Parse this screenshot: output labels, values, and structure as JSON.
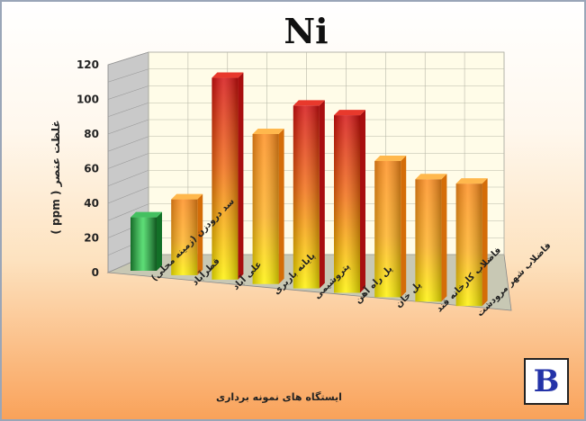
{
  "chart_data": {
    "type": "bar",
    "title": "Ni",
    "ylabel": "غلظت عنصر ( ppm )",
    "xlabel": "ایستگاه های نمونه برداری",
    "ylim": [
      0,
      120
    ],
    "yticks": [
      0,
      20,
      40,
      60,
      80,
      100,
      120
    ],
    "grid": true,
    "categories": [
      "سد درودزن (زمینه محلی)",
      "قطرآباد",
      "علی آباد",
      "پایانه باربری",
      "پتروشیمی",
      "پل راه آهن",
      "پل خان",
      "فاضلاب کارخانه قند",
      "فاضلاب شهر مرودشت"
    ],
    "values": [
      31,
      44,
      117,
      87,
      106,
      103,
      79,
      71,
      71
    ],
    "colors": [
      "green",
      "orange",
      "red",
      "orange",
      "red",
      "red",
      "orange",
      "orange",
      "orange"
    ]
  },
  "panel_label": "B"
}
